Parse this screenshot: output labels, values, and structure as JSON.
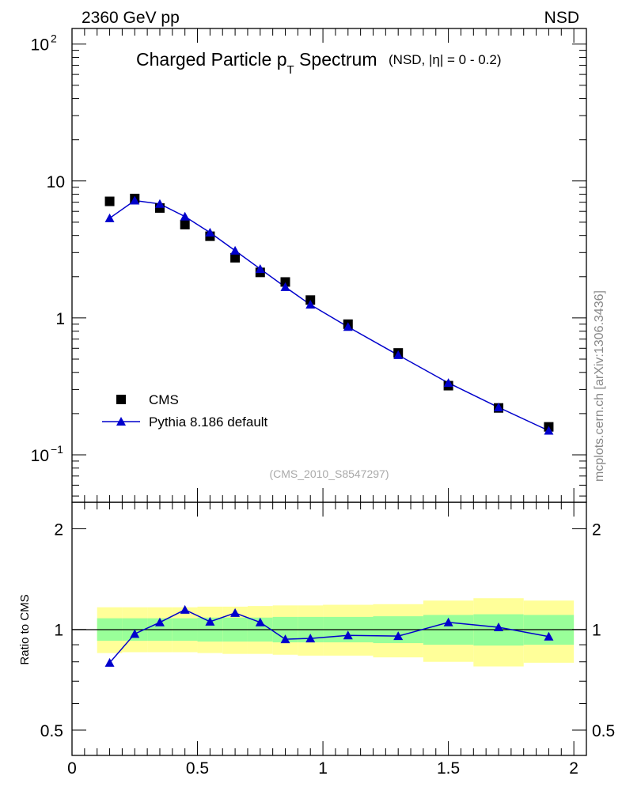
{
  "header": {
    "left": "2360 GeV pp",
    "right": "NSD"
  },
  "title": {
    "main_pre": "Charged Particle p",
    "main_sub": "T",
    "main_post": " Spectrum",
    "qualifier": "(NSD, |η| =    0 - 0.2)"
  },
  "watermark": "(CMS_2010_S8547297)",
  "side_label": "mcplots.cern.ch [arXiv:1306.3436]",
  "legend": {
    "data_label": "CMS",
    "mc_label": "Pythia 8.186 default"
  },
  "colors": {
    "mc": "#0000cc",
    "data": "#000000",
    "band_inner": "#99ff99",
    "band_outer": "#ffff99"
  },
  "chart_data": [
    {
      "type": "scatter",
      "scale": "log",
      "xlim": [
        0,
        2.05
      ],
      "ylim": [
        0.045,
        130
      ],
      "y_ticks": [
        {
          "value": 0.1,
          "label": "10",
          "exp": "−1"
        },
        {
          "value": 1,
          "label": "1",
          "exp": ""
        },
        {
          "value": 10,
          "label": "10",
          "exp": ""
        },
        {
          "value": 100,
          "label": "10",
          "exp": "2"
        }
      ],
      "series": [
        {
          "name": "CMS",
          "x": [
            0.15,
            0.25,
            0.35,
            0.45,
            0.55,
            0.65,
            0.75,
            0.85,
            0.95,
            1.1,
            1.3,
            1.5,
            1.7,
            1.9
          ],
          "y": [
            7.1,
            7.45,
            6.35,
            4.8,
            3.95,
            2.75,
            2.15,
            1.83,
            1.35,
            0.9,
            0.555,
            0.32,
            0.22,
            0.16
          ]
        },
        {
          "name": "Pythia 8.186 default",
          "x": [
            0.15,
            0.25,
            0.35,
            0.45,
            0.55,
            0.65,
            0.75,
            0.85,
            0.95,
            1.1,
            1.3,
            1.5,
            1.7,
            1.9
          ],
          "y": [
            5.35,
            7.2,
            6.8,
            5.5,
            4.2,
            3.1,
            2.28,
            1.68,
            1.25,
            0.86,
            0.535,
            0.335,
            0.222,
            0.15
          ]
        }
      ]
    },
    {
      "type": "line",
      "scale": "log",
      "xlim": [
        0,
        2.05
      ],
      "ylim": [
        0.42,
        2.4
      ],
      "ylabel": "Ratio to CMS",
      "x_ticks": [
        {
          "value": 0,
          "label": "0"
        },
        {
          "value": 0.5,
          "label": "0.5"
        },
        {
          "value": 1,
          "label": "1"
        },
        {
          "value": 1.5,
          "label": "1.5"
        },
        {
          "value": 2,
          "label": "2"
        }
      ],
      "y_ticks": [
        {
          "value": 0.5,
          "label": "0.5"
        },
        {
          "value": 1,
          "label": "1"
        },
        {
          "value": 2,
          "label": "2"
        }
      ],
      "bands": [
        {
          "x0": 0.1,
          "x1": 0.2,
          "inner": [
            0.925,
            1.08
          ],
          "outer": [
            0.85,
            1.165
          ]
        },
        {
          "x0": 0.2,
          "x1": 0.3,
          "inner": [
            0.925,
            1.08
          ],
          "outer": [
            0.855,
            1.165
          ]
        },
        {
          "x0": 0.3,
          "x1": 0.4,
          "inner": [
            0.925,
            1.08
          ],
          "outer": [
            0.855,
            1.165
          ]
        },
        {
          "x0": 0.4,
          "x1": 0.5,
          "inner": [
            0.925,
            1.08
          ],
          "outer": [
            0.855,
            1.165
          ]
        },
        {
          "x0": 0.5,
          "x1": 0.6,
          "inner": [
            0.92,
            1.085
          ],
          "outer": [
            0.85,
            1.17
          ]
        },
        {
          "x0": 0.6,
          "x1": 0.7,
          "inner": [
            0.92,
            1.085
          ],
          "outer": [
            0.845,
            1.17
          ]
        },
        {
          "x0": 0.7,
          "x1": 0.8,
          "inner": [
            0.92,
            1.085
          ],
          "outer": [
            0.845,
            1.175
          ]
        },
        {
          "x0": 0.8,
          "x1": 0.9,
          "inner": [
            0.915,
            1.09
          ],
          "outer": [
            0.84,
            1.18
          ]
        },
        {
          "x0": 0.9,
          "x1": 1.0,
          "inner": [
            0.915,
            1.09
          ],
          "outer": [
            0.835,
            1.18
          ]
        },
        {
          "x0": 1.0,
          "x1": 1.2,
          "inner": [
            0.915,
            1.09
          ],
          "outer": [
            0.835,
            1.185
          ]
        },
        {
          "x0": 1.2,
          "x1": 1.4,
          "inner": [
            0.91,
            1.095
          ],
          "outer": [
            0.825,
            1.19
          ]
        },
        {
          "x0": 1.4,
          "x1": 1.6,
          "inner": [
            0.9,
            1.105
          ],
          "outer": [
            0.8,
            1.22
          ]
        },
        {
          "x0": 1.6,
          "x1": 1.8,
          "inner": [
            0.895,
            1.11
          ],
          "outer": [
            0.775,
            1.24
          ]
        },
        {
          "x0": 1.8,
          "x1": 2.0,
          "inner": [
            0.9,
            1.105
          ],
          "outer": [
            0.795,
            1.22
          ]
        }
      ],
      "series": [
        {
          "name": "Pythia 8.186 default",
          "x": [
            0.15,
            0.25,
            0.35,
            0.45,
            0.55,
            0.65,
            0.75,
            0.85,
            0.95,
            1.1,
            1.3,
            1.5,
            1.7,
            1.9
          ],
          "y": [
            0.795,
            0.97,
            1.05,
            1.145,
            1.055,
            1.12,
            1.05,
            0.935,
            0.94,
            0.96,
            0.955,
            1.05,
            1.015,
            0.952
          ]
        }
      ]
    }
  ]
}
